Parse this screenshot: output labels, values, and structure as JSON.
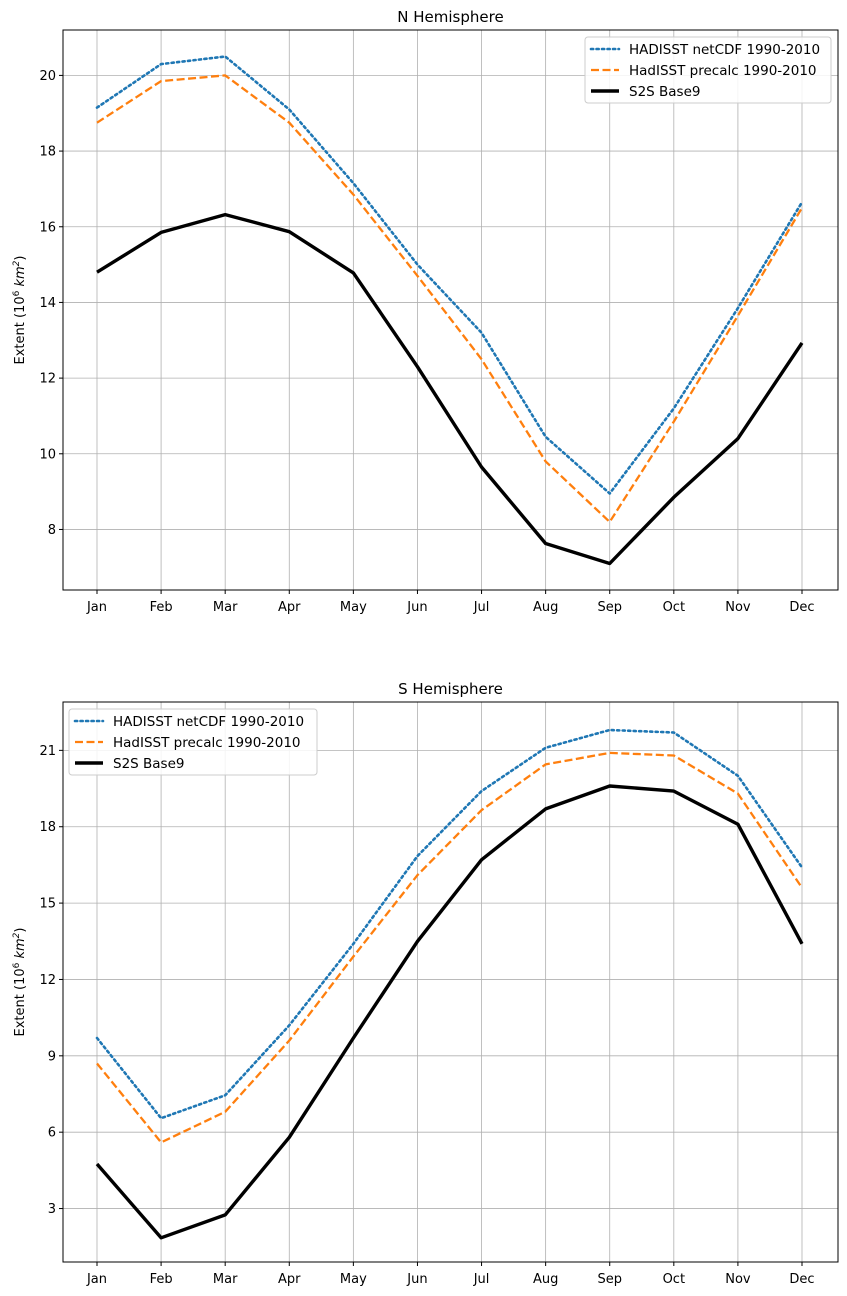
{
  "chart_data": [
    {
      "type": "line",
      "title": "N Hemisphere",
      "ylabel": "Extent (10^6 km^2)",
      "ylabel_prefix": "Extent (10",
      "ylabel_exp": "6",
      "ylabel_unit": "km",
      "ylabel_unit_exp": "2",
      "ylabel_suffix": ")",
      "categories": [
        "Jan",
        "Feb",
        "Mar",
        "Apr",
        "May",
        "Jun",
        "Jul",
        "Aug",
        "Sep",
        "Oct",
        "Nov",
        "Dec"
      ],
      "ylim": [
        6.4,
        21.2
      ],
      "yticks": [
        8,
        10,
        12,
        14,
        16,
        18,
        20
      ],
      "grid": true,
      "legend_position": "top-right",
      "series": [
        {
          "name": "HADISST netCDF 1990-2010",
          "color": "#1f77b4",
          "style": "dotted",
          "values": [
            19.15,
            20.3,
            20.5,
            19.1,
            17.15,
            15.0,
            13.2,
            10.45,
            8.95,
            11.2,
            13.85,
            16.65
          ]
        },
        {
          "name": "HadISST precalc 1990-2010",
          "color": "#ff7f0e",
          "style": "dashed",
          "values": [
            18.75,
            19.85,
            20.0,
            18.75,
            16.85,
            14.7,
            12.5,
            9.8,
            8.2,
            10.85,
            13.65,
            16.5
          ]
        },
        {
          "name": "S2S Base9",
          "color": "#000000",
          "style": "solid",
          "values": [
            14.8,
            15.85,
            16.32,
            15.87,
            14.78,
            12.3,
            9.65,
            7.63,
            7.1,
            8.85,
            10.4,
            12.93
          ]
        }
      ]
    },
    {
      "type": "line",
      "title": "S Hemisphere",
      "ylabel": "Extent (10^6 km^2)",
      "ylabel_prefix": "Extent (10",
      "ylabel_exp": "6",
      "ylabel_unit": "km",
      "ylabel_unit_exp": "2",
      "ylabel_suffix": ")",
      "categories": [
        "Jan",
        "Feb",
        "Mar",
        "Apr",
        "May",
        "Jun",
        "Jul",
        "Aug",
        "Sep",
        "Oct",
        "Nov",
        "Dec"
      ],
      "ylim": [
        0.9,
        22.9
      ],
      "yticks": [
        3,
        6,
        9,
        12,
        15,
        18,
        21
      ],
      "grid": true,
      "legend_position": "top-left",
      "series": [
        {
          "name": "HADISST netCDF 1990-2010",
          "color": "#1f77b4",
          "style": "dotted",
          "values": [
            9.7,
            6.55,
            7.45,
            10.2,
            13.4,
            16.85,
            19.4,
            21.1,
            21.8,
            21.7,
            20.0,
            16.4
          ]
        },
        {
          "name": "HadISST precalc 1990-2010",
          "color": "#ff7f0e",
          "style": "dashed",
          "values": [
            8.7,
            5.6,
            6.8,
            9.6,
            12.9,
            16.1,
            18.65,
            20.45,
            20.9,
            20.8,
            19.3,
            15.6
          ]
        },
        {
          "name": "S2S Base9",
          "color": "#000000",
          "style": "solid",
          "values": [
            4.75,
            1.85,
            2.75,
            5.8,
            9.7,
            13.5,
            16.7,
            18.7,
            19.6,
            19.4,
            18.1,
            13.4
          ]
        }
      ]
    }
  ]
}
